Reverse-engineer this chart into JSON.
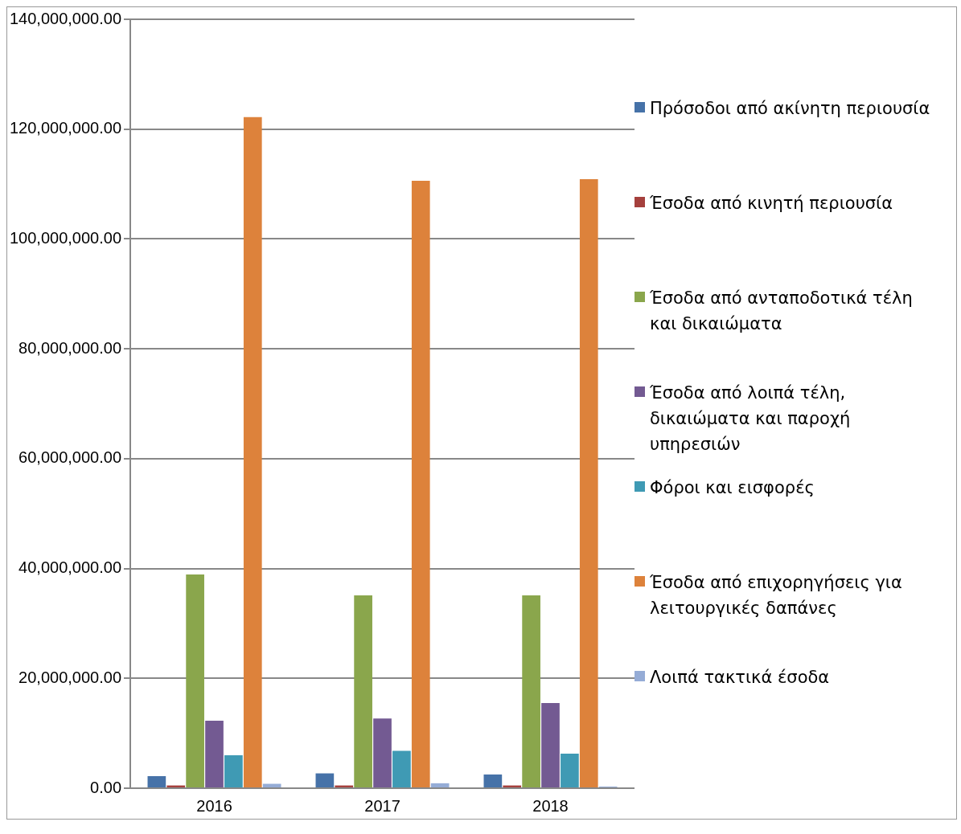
{
  "chart_data": {
    "type": "bar",
    "categories": [
      "2016",
      "2017",
      "2018"
    ],
    "series": [
      {
        "name": "Πρόσοδοι από ακίνητη περιουσία",
        "color": "#4672a8",
        "values": [
          2200000,
          2700000,
          2500000
        ]
      },
      {
        "name": "Έσοδα από κινητή περιουσία",
        "color": "#a5403d",
        "values": [
          500000,
          500000,
          500000
        ]
      },
      {
        "name": "Έσοδα από ανταποδοτικά τέλη και δικαιώματα",
        "color": "#8aa64c",
        "values": [
          38900000,
          35100000,
          35100000
        ]
      },
      {
        "name": "Έσοδα από λοιπά τέλη, δικαιώματα και παροχή υπηρεσιών",
        "color": "#735a92",
        "values": [
          12300000,
          12700000,
          15500000
        ]
      },
      {
        "name": "Φόροι και εισφορές",
        "color": "#3f9ab4",
        "values": [
          6000000,
          6800000,
          6300000
        ]
      },
      {
        "name": "Έσοδα από επιχορηγήσεις για λειτουργικές δαπάνες",
        "color": "#dd823b",
        "values": [
          122200000,
          110600000,
          110900000
        ]
      },
      {
        "name": "Λοιπά τακτικά έσοδα",
        "color": "#95acd6",
        "values": [
          800000,
          900000,
          300000
        ]
      }
    ],
    "ylim": [
      0,
      140000000
    ],
    "yticks": [
      {
        "value": 0,
        "label": "0.00"
      },
      {
        "value": 20000000,
        "label": "20,000,000.00"
      },
      {
        "value": 40000000,
        "label": "40,000,000.00"
      },
      {
        "value": 60000000,
        "label": "60,000,000.00"
      },
      {
        "value": 80000000,
        "label": "80,000,000.00"
      },
      {
        "value": 100000000,
        "label": "100,000,000.00"
      },
      {
        "value": 120000000,
        "label": "120,000,000.00"
      },
      {
        "value": 140000000,
        "label": "140,000,000.00"
      }
    ],
    "grid": "y",
    "legend": "right"
  }
}
